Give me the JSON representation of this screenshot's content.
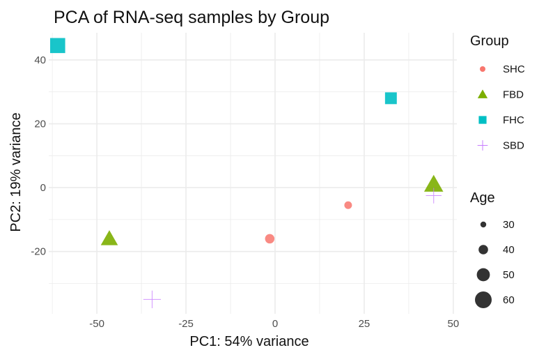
{
  "chart_data": {
    "type": "scatter",
    "title": "PCA of RNA-seq samples by Group",
    "xlabel": "PC1: 54% variance",
    "ylabel": "PC2: 19% variance",
    "xlim": [
      -63.5,
      51
    ],
    "ylim": [
      -39.5,
      48.5
    ],
    "x_ticks": [
      -50,
      -25,
      0,
      25,
      50
    ],
    "y_ticks": [
      -20,
      0,
      20,
      40
    ],
    "x_tick_labels": [
      "-50",
      "-25",
      "0",
      "25",
      "50"
    ],
    "y_tick_labels": [
      "-20",
      "0",
      "20",
      "40"
    ],
    "grid": true,
    "legend_position": "right",
    "legends": {
      "group": {
        "title": "Group",
        "entries": [
          {
            "label": "SHC",
            "shape": "circle",
            "color": "#F8766D"
          },
          {
            "label": "FBD",
            "shape": "triangle",
            "color": "#7CAE00"
          },
          {
            "label": "FHC",
            "shape": "square",
            "color": "#00BFC4"
          },
          {
            "label": "SBD",
            "shape": "plus",
            "color": "#C77CFF"
          }
        ]
      },
      "age": {
        "title": "Age",
        "entries": [
          {
            "label": "30",
            "value": 30
          },
          {
            "label": "40",
            "value": 40
          },
          {
            "label": "50",
            "value": 50
          },
          {
            "label": "60",
            "value": 60
          }
        ]
      }
    },
    "points": [
      {
        "group": "FHC",
        "x": -61,
        "y": 44.5,
        "age": 60
      },
      {
        "group": "FHC",
        "x": 32.5,
        "y": 28,
        "age": 50
      },
      {
        "group": "FBD",
        "x": 44.5,
        "y": 1,
        "age": 60
      },
      {
        "group": "SBD",
        "x": 44.5,
        "y": -2.5,
        "age": 55
      },
      {
        "group": "SHC",
        "x": 20.5,
        "y": -5.5,
        "age": 35
      },
      {
        "group": "SHC",
        "x": -1.5,
        "y": -16,
        "age": 40
      },
      {
        "group": "FBD",
        "x": -46.5,
        "y": -16,
        "age": 55
      },
      {
        "group": "SBD",
        "x": -34.5,
        "y": -35,
        "age": 60
      }
    ],
    "colors": {
      "SHC": "#F8766D",
      "FBD": "#7CAE00",
      "FHC": "#00BFC4",
      "SBD": "#C77CFF",
      "grid": "#ebebeb",
      "size_legend": "#333333"
    }
  }
}
